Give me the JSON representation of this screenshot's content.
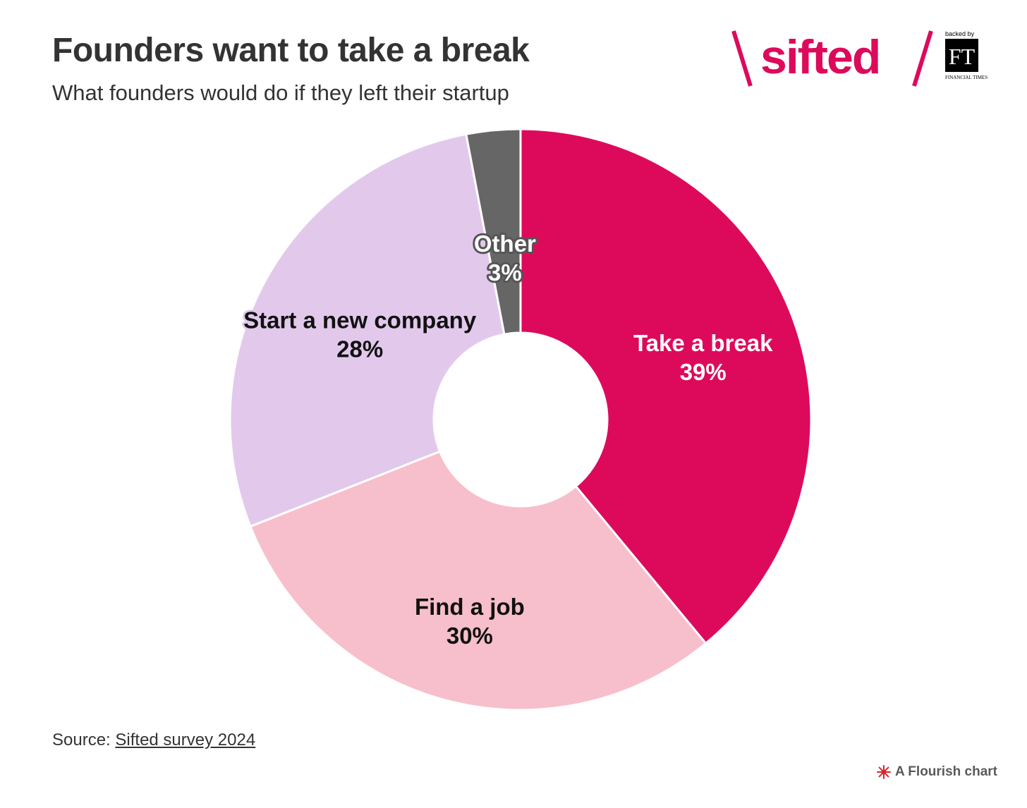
{
  "header": {
    "title": "Founders want to take a break",
    "subtitle": "What founders would do if they left their startup"
  },
  "logo": {
    "wordmark": "sifted",
    "backed_by": "backed by",
    "ft_mark": "FT",
    "ft_name": "FINANCIAL TIMES",
    "brand_color": "#DD0A5C"
  },
  "footer": {
    "source_prefix": "Source:",
    "source_link": "Sifted survey 2024",
    "credit": "A Flourish chart"
  },
  "chart_data": {
    "type": "pie",
    "donut": true,
    "title": "Founders want to take a break",
    "subtitle": "What founders would do if they left their startup",
    "slices": [
      {
        "label": "Take a break",
        "value": 39,
        "display": "39%",
        "color": "#DD0A5C",
        "text_color": "#ffffff",
        "halo": "none"
      },
      {
        "label": "Find a job",
        "value": 30,
        "display": "30%",
        "color": "#F7BFCB",
        "text_color": "#111111",
        "halo": "#F7BFCB"
      },
      {
        "label": "Start a new company",
        "value": 28,
        "display": "28%",
        "color": "#E2C9EC",
        "text_color": "#111111",
        "halo": "#E2C9EC"
      },
      {
        "label": "Other",
        "value": 3,
        "display": "3%",
        "color": "#666666",
        "text_color": "#ffffff",
        "halo": "#555555"
      }
    ],
    "start_angle": "12 o'clock",
    "direction": "clockwise"
  }
}
